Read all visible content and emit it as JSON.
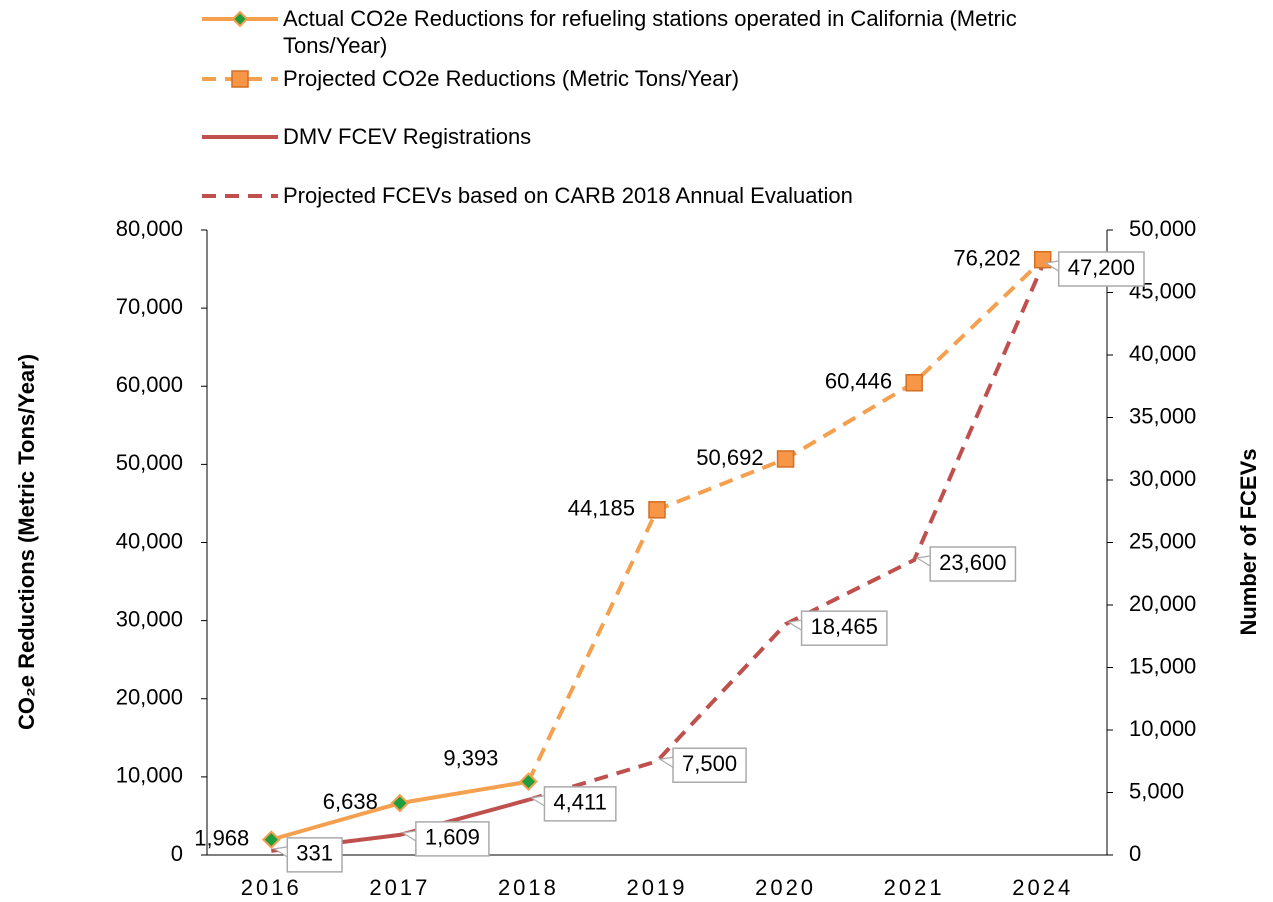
{
  "chart_data": {
    "type": "line",
    "categories": [
      "2016",
      "2017",
      "2018",
      "2019",
      "2020",
      "2021",
      "2024"
    ],
    "ylabel": "CO₂e Reductions (Metric Tons/Year)",
    "y2label": "Number of FCEVs",
    "ylim": [
      0,
      80000
    ],
    "yticks": [
      0,
      {
        "value": 10000,
        "label": "10,000"
      },
      {
        "value": 20000,
        "label": "20,000"
      },
      {
        "value": 30000,
        "label": "30,000"
      },
      {
        "value": 40000,
        "label": "40,000"
      },
      {
        "value": 50000,
        "label": "50,000"
      },
      {
        "value": 60000,
        "label": "60,000"
      },
      {
        "value": 70000,
        "label": "70,000"
      },
      {
        "value": 80000,
        "label": "80,000"
      }
    ],
    "y2lim": [
      0,
      50000
    ],
    "y2ticks": [
      0,
      {
        "value": 5000,
        "label": "5,000"
      },
      {
        "value": 10000,
        "label": "10,000"
      },
      {
        "value": 15000,
        "label": "15,000"
      },
      {
        "value": 20000,
        "label": "20,000"
      },
      {
        "value": 25000,
        "label": "25,000"
      },
      {
        "value": 30000,
        "label": "30,000"
      },
      {
        "value": 35000,
        "label": "35,000"
      },
      {
        "value": 40000,
        "label": "40,000"
      },
      {
        "value": 45000,
        "label": "45,000"
      },
      {
        "value": 50000,
        "label": "50,000"
      }
    ],
    "series": [
      {
        "name": "Actual CO2e Reductions for refueling stations operated in California (Metric Tons/Year)",
        "color": "#f4a04e",
        "dash": false,
        "marker": "diamond",
        "axis": "y",
        "values": [
          1968,
          6638,
          9393,
          null,
          null,
          null,
          null
        ],
        "value_labels": [
          "1,968",
          "6,638",
          "9,393",
          null,
          null,
          null,
          null
        ]
      },
      {
        "name": "Projected CO2e Reductions (Metric Tons/Year)",
        "color": "#f4a04e",
        "dash": true,
        "marker": "square",
        "axis": "y",
        "values": [
          null,
          null,
          9393,
          44185,
          50692,
          60446,
          76202
        ],
        "value_labels": [
          null,
          null,
          null,
          "44,185",
          "50,692",
          "60,446",
          "76,202"
        ]
      },
      {
        "name": "DMV FCEV Registrations",
        "color": "#c0504d",
        "dash": false,
        "marker": null,
        "axis": "y2",
        "values": [
          331,
          1609,
          4411,
          null,
          null,
          null,
          null
        ],
        "value_labels": [
          "331",
          "1,609",
          "4,411",
          null,
          null,
          null,
          null
        ]
      },
      {
        "name": "Projected FCEVs based on CARB 2018 Annual Evaluation",
        "color": "#c0504d",
        "dash": true,
        "marker": null,
        "axis": "y2",
        "values": [
          null,
          null,
          4411,
          7500,
          18465,
          23600,
          47200
        ],
        "value_labels": [
          null,
          null,
          null,
          "7,500",
          "18,465",
          "23,600",
          "47,200"
        ]
      }
    ]
  }
}
